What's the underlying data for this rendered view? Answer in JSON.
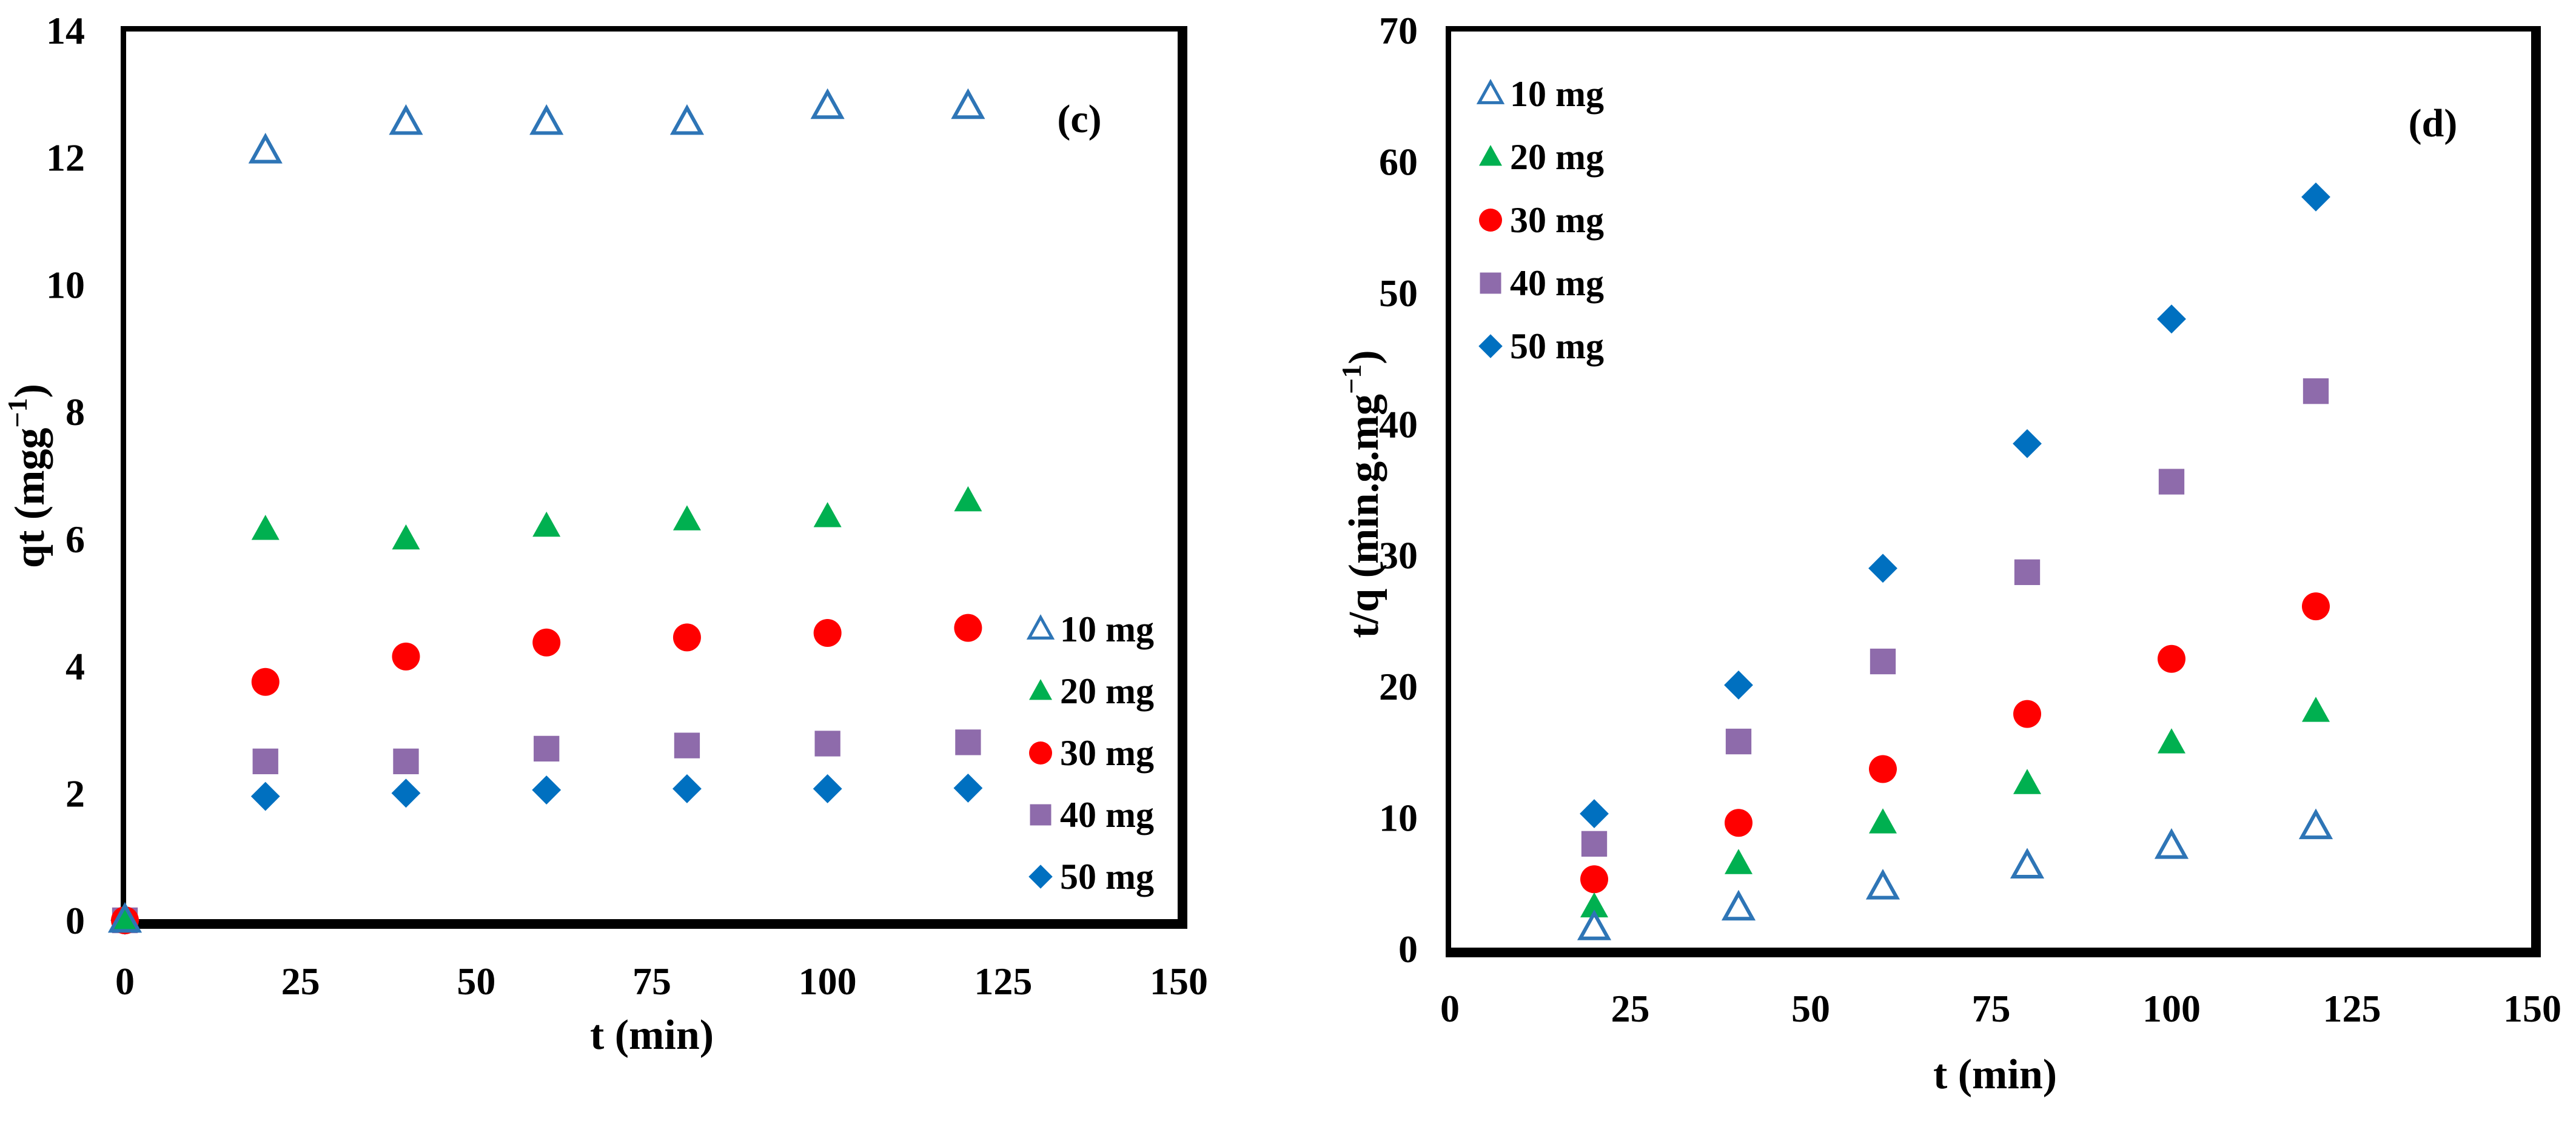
{
  "chart_data": [
    {
      "type": "scatter",
      "panel_label": "(c)",
      "xlabel": "t (min)",
      "ylabel_main": "qt (mgg",
      "ylabel_sup": "−1",
      "ylabel_close": ")",
      "xlim": [
        0,
        150
      ],
      "ylim": [
        0,
        14
      ],
      "xticks": [
        "0",
        "25",
        "50",
        "75",
        "100",
        "125",
        "150"
      ],
      "yticks": [
        "0",
        "2",
        "4",
        "6",
        "8",
        "10",
        "12",
        "14"
      ],
      "legend_position": "bottom-right",
      "x": [
        0,
        20,
        40,
        60,
        80,
        100,
        120
      ],
      "series": [
        {
          "name": "10 mg",
          "marker": "triangle-open",
          "color": "#2e75b6",
          "values": [
            0,
            12.1,
            12.55,
            12.55,
            12.55,
            12.8,
            12.8
          ]
        },
        {
          "name": "20 mg",
          "marker": "triangle",
          "color": "#00b050",
          "values": [
            0,
            6.15,
            6.0,
            6.2,
            6.3,
            6.35,
            6.6
          ]
        },
        {
          "name": "30 mg",
          "marker": "circle",
          "color": "#ff0000",
          "values": [
            0,
            3.75,
            4.15,
            4.37,
            4.45,
            4.52,
            4.6
          ]
        },
        {
          "name": "40 mg",
          "marker": "square",
          "color": "#8e6bab",
          "values": [
            0,
            2.5,
            2.5,
            2.7,
            2.75,
            2.78,
            2.8
          ]
        },
        {
          "name": "50 mg",
          "marker": "diamond",
          "color": "#0070c0",
          "values": [
            0,
            1.95,
            2.0,
            2.05,
            2.07,
            2.07,
            2.08
          ]
        }
      ]
    },
    {
      "type": "scatter",
      "panel_label": "(d)",
      "xlabel": "t (min)",
      "ylabel_main": "t/q (min.g.mg",
      "ylabel_sup": "−1",
      "ylabel_close": ")",
      "xlim": [
        0,
        150
      ],
      "ylim": [
        0,
        70
      ],
      "xticks": [
        "0",
        "25",
        "50",
        "75",
        "100",
        "125",
        "150"
      ],
      "yticks": [
        "0",
        "10",
        "20",
        "30",
        "40",
        "50",
        "60",
        "70"
      ],
      "legend_position": "top-left",
      "x": [
        20,
        40,
        60,
        80,
        100,
        120
      ],
      "series": [
        {
          "name": "10 mg",
          "marker": "triangle-open",
          "color": "#2e75b6",
          "values": [
            1.6,
            3.1,
            4.7,
            6.3,
            7.8,
            9.3
          ]
        },
        {
          "name": "20 mg",
          "marker": "triangle",
          "color": "#00b050",
          "values": [
            3.2,
            6.5,
            9.6,
            12.6,
            15.7,
            18.1
          ]
        },
        {
          "name": "30 mg",
          "marker": "circle",
          "color": "#ff0000",
          "values": [
            5.3,
            9.6,
            13.7,
            17.9,
            22.1,
            26.1
          ]
        },
        {
          "name": "40 mg",
          "marker": "square",
          "color": "#8e6bab",
          "values": [
            8.0,
            15.8,
            21.9,
            28.7,
            35.6,
            42.5
          ]
        },
        {
          "name": "50 mg",
          "marker": "diamond",
          "color": "#0070c0",
          "values": [
            10.3,
            20.1,
            29.0,
            38.5,
            48.0,
            57.3
          ]
        }
      ]
    }
  ]
}
